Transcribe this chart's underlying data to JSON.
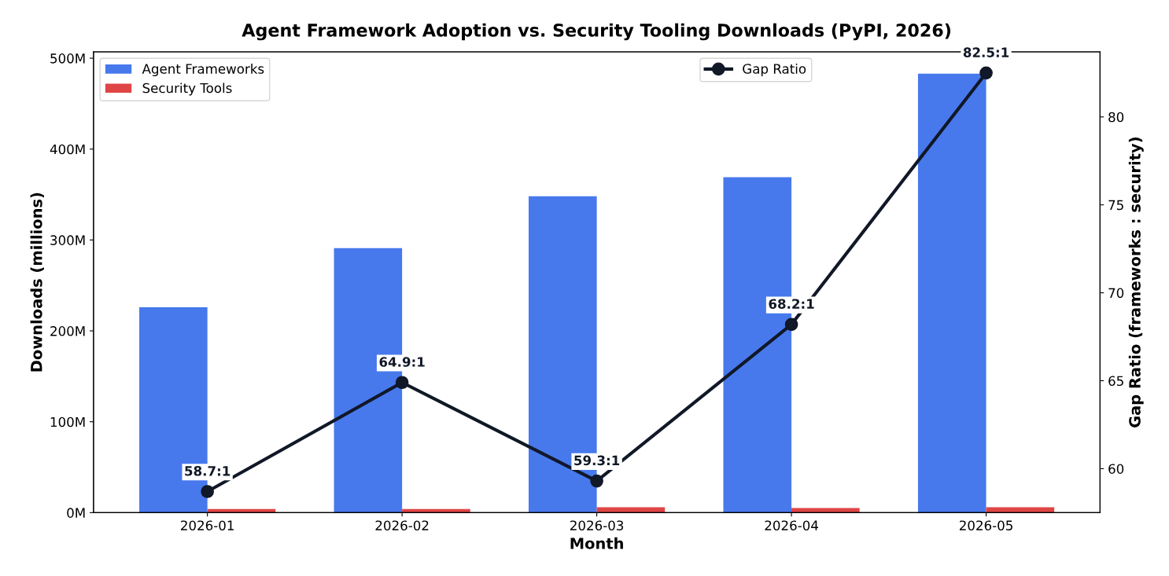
{
  "chart_data": {
    "type": "bar",
    "title": "Agent Framework Adoption vs. Security Tooling Downloads (PyPI, 2026)",
    "xlabel": "Month",
    "ylabel": "Downloads (millions)",
    "y2label": "Gap Ratio (frameworks : security)",
    "categories": [
      "2026-01",
      "2026-02",
      "2026-03",
      "2026-04",
      "2026-05"
    ],
    "series": [
      {
        "name": "Agent Frameworks",
        "color": "#4779ed",
        "values": [
          226,
          291,
          348,
          369,
          483
        ]
      },
      {
        "name": "Security Tools",
        "color": "#e04545",
        "values": [
          4,
          4,
          6,
          5,
          6
        ]
      },
      {
        "name": "Gap Ratio",
        "type": "line",
        "axis": "y2",
        "color": "#111827",
        "marker": "circle",
        "values": [
          58.7,
          64.9,
          59.3,
          68.2,
          82.5
        ],
        "value_labels": [
          "58.7:1",
          "64.9:1",
          "59.3:1",
          "68.2:1",
          "82.5:1"
        ]
      }
    ],
    "ylim": [
      0,
      507
    ],
    "yticks": [
      {
        "value": 0,
        "label": "0M"
      },
      {
        "value": 100,
        "label": "100M"
      },
      {
        "value": 200,
        "label": "200M"
      },
      {
        "value": 300,
        "label": "300M"
      },
      {
        "value": 400,
        "label": "400M"
      },
      {
        "value": 500,
        "label": "500M"
      }
    ],
    "y2lim": [
      57.5,
      83.7
    ],
    "y2ticks": [
      60,
      65,
      70,
      75,
      80
    ],
    "legend": "top left",
    "grid": false
  }
}
